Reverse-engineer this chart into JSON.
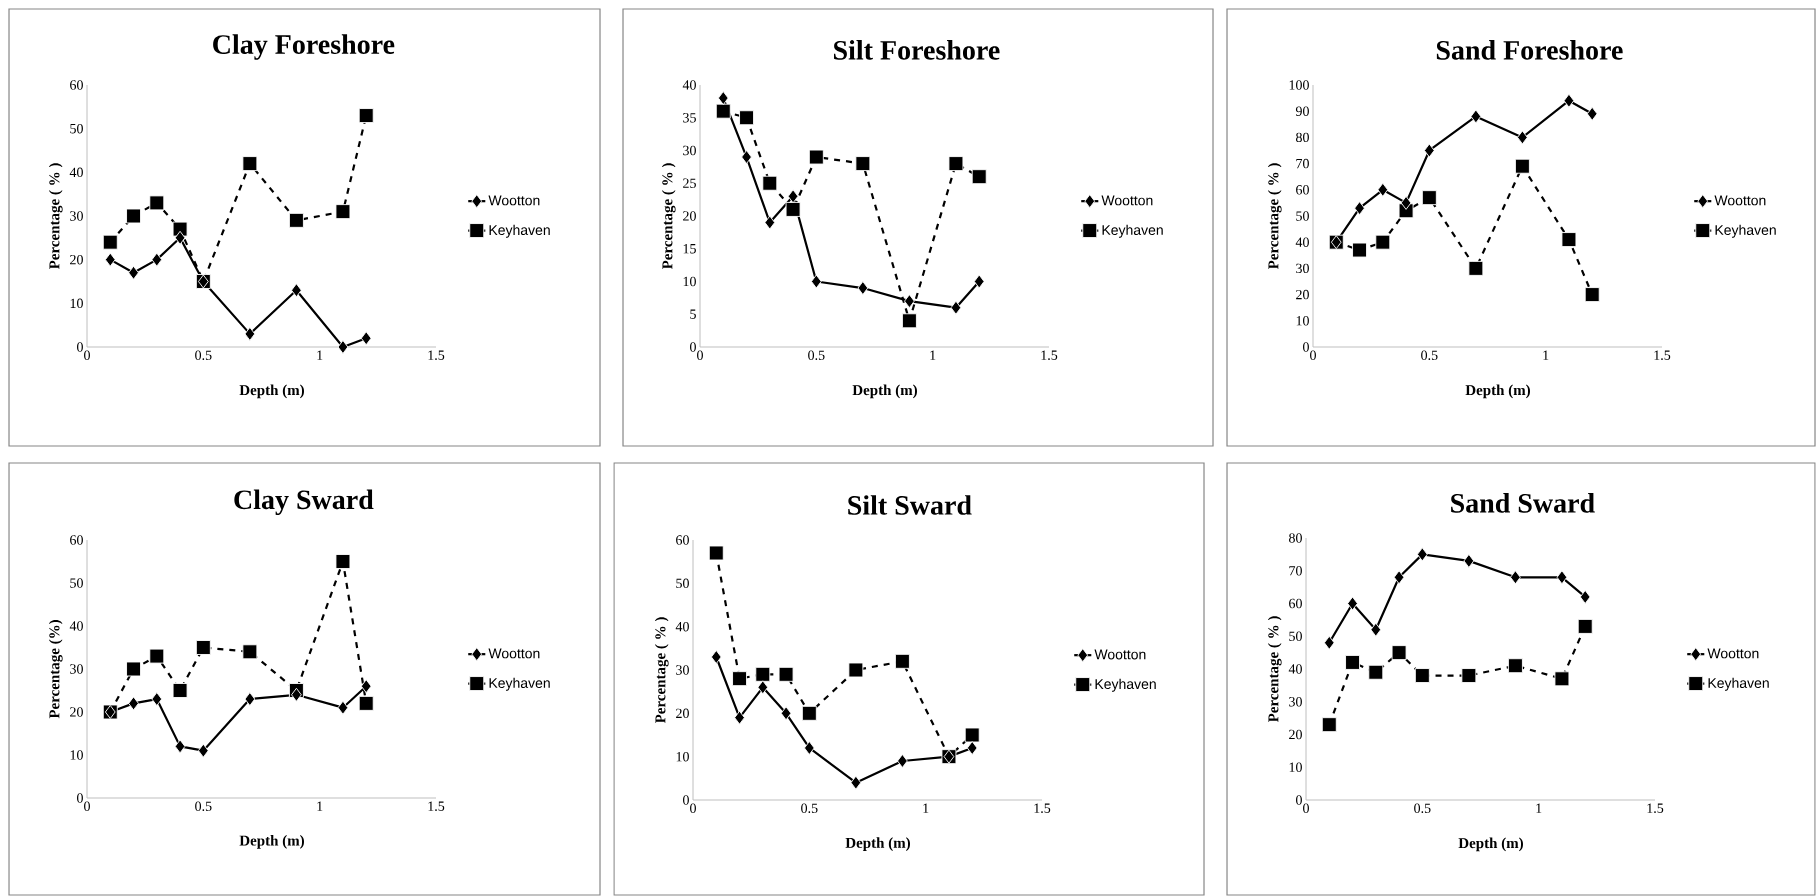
{
  "chart_data": [
    {
      "type": "line",
      "title": "Clay Foreshore",
      "xlabel": "Depth (m)",
      "ylabel": "Percentage ( % )",
      "x": [
        0.1,
        0.2,
        0.3,
        0.4,
        0.5,
        0.7,
        0.9,
        1.1,
        1.2
      ],
      "xlim": [
        0,
        1.5
      ],
      "xticks": [
        0,
        0.5,
        1,
        1.5
      ],
      "ylim": [
        0,
        60
      ],
      "yticks": [
        0,
        10,
        20,
        30,
        40,
        50,
        60
      ],
      "legend": "right",
      "series": [
        {
          "name": "Wootton",
          "color": "#000000",
          "marker": "diamond",
          "line_style": "solid",
          "values": [
            20,
            17,
            20,
            25,
            15,
            3,
            13,
            0,
            2
          ]
        },
        {
          "name": "Keyhaven",
          "color": "#000000",
          "marker": "square",
          "line_style": "dashed",
          "values": [
            24,
            30,
            33,
            27,
            15,
            42,
            29,
            31,
            53
          ]
        }
      ]
    },
    {
      "type": "line",
      "title": "Silt Foreshore",
      "xlabel": "Depth (m)",
      "ylabel": "Percentage ( % )",
      "x": [
        0.1,
        0.2,
        0.3,
        0.4,
        0.5,
        0.7,
        0.9,
        1.1,
        1.2
      ],
      "xlim": [
        0,
        1.5
      ],
      "xticks": [
        0,
        0.5,
        1,
        1.5
      ],
      "ylim": [
        0,
        40
      ],
      "yticks": [
        0,
        5,
        10,
        15,
        20,
        25,
        30,
        35,
        40
      ],
      "legend": "right",
      "series": [
        {
          "name": "Wootton",
          "color": "#000000",
          "marker": "diamond",
          "line_style": "solid",
          "values": [
            38,
            29,
            19,
            23,
            10,
            9,
            7,
            6,
            10
          ]
        },
        {
          "name": "Keyhaven",
          "color": "#000000",
          "marker": "square",
          "line_style": "dashed",
          "values": [
            36,
            35,
            25,
            21,
            29,
            28,
            4,
            28,
            26
          ]
        }
      ]
    },
    {
      "type": "line",
      "title": "Sand Foreshore",
      "xlabel": "Depth (m)",
      "ylabel": "Percentage ( % )",
      "x": [
        0.1,
        0.2,
        0.3,
        0.4,
        0.5,
        0.7,
        0.9,
        1.1,
        1.2
      ],
      "xlim": [
        0,
        1.5
      ],
      "xticks": [
        0,
        0.5,
        1,
        1.5
      ],
      "ylim": [
        0,
        100
      ],
      "yticks": [
        0,
        10,
        20,
        30,
        40,
        50,
        60,
        70,
        80,
        90,
        100
      ],
      "legend": "right",
      "series": [
        {
          "name": "Wootton",
          "color": "#000000",
          "marker": "diamond",
          "line_style": "solid",
          "values": [
            40,
            53,
            60,
            55,
            75,
            88,
            80,
            94,
            89
          ]
        },
        {
          "name": "Keyhaven",
          "color": "#000000",
          "marker": "square",
          "line_style": "dashed",
          "values": [
            40,
            37,
            40,
            52,
            57,
            30,
            69,
            41,
            20
          ]
        }
      ]
    },
    {
      "type": "line",
      "title": "Clay Sward",
      "xlabel": "Depth (m)",
      "ylabel": "Percentage (%)",
      "x": [
        0.1,
        0.2,
        0.3,
        0.4,
        0.5,
        0.7,
        0.9,
        1.1,
        1.2
      ],
      "xlim": [
        0,
        1.5
      ],
      "xticks": [
        0,
        0.5,
        1,
        1.5
      ],
      "ylim": [
        0,
        60
      ],
      "yticks": [
        0,
        10,
        20,
        30,
        40,
        50,
        60
      ],
      "legend": "right",
      "series": [
        {
          "name": "Wootton",
          "color": "#000000",
          "marker": "diamond",
          "line_style": "solid",
          "values": [
            20,
            22,
            23,
            12,
            11,
            23,
            24,
            21,
            26
          ]
        },
        {
          "name": "Keyhaven",
          "color": "#000000",
          "marker": "square",
          "line_style": "dashed",
          "values": [
            20,
            30,
            33,
            25,
            35,
            34,
            25,
            55,
            22
          ]
        }
      ]
    },
    {
      "type": "line",
      "title": "Silt Sward",
      "xlabel": "Depth (m)",
      "ylabel": "Percentage ( % )",
      "x": [
        0.1,
        0.2,
        0.3,
        0.4,
        0.5,
        0.7,
        0.9,
        1.1,
        1.2
      ],
      "xlim": [
        0,
        1.5
      ],
      "xticks": [
        0,
        0.5,
        1,
        1.5
      ],
      "ylim": [
        0,
        60
      ],
      "yticks": [
        0,
        10,
        20,
        30,
        40,
        50,
        60
      ],
      "legend": "right",
      "series": [
        {
          "name": "Wootton",
          "color": "#000000",
          "marker": "diamond",
          "line_style": "solid",
          "values": [
            33,
            19,
            26,
            20,
            12,
            4,
            9,
            10,
            12
          ]
        },
        {
          "name": "Keyhaven",
          "color": "#000000",
          "marker": "square",
          "line_style": "dashed",
          "values": [
            57,
            28,
            29,
            29,
            20,
            30,
            32,
            10,
            15
          ]
        }
      ]
    },
    {
      "type": "line",
      "title": "Sand Sward",
      "xlabel": "Depth (m)",
      "ylabel": "Percentage ( % )",
      "x": [
        0.1,
        0.2,
        0.3,
        0.4,
        0.5,
        0.7,
        0.9,
        1.1,
        1.2
      ],
      "xlim": [
        0,
        1.5
      ],
      "xticks": [
        0,
        0.5,
        1,
        1.5
      ],
      "ylim": [
        0,
        80
      ],
      "yticks": [
        0,
        10,
        20,
        30,
        40,
        50,
        60,
        70,
        80
      ],
      "legend": "right",
      "series": [
        {
          "name": "Wootton",
          "color": "#000000",
          "marker": "diamond",
          "line_style": "solid",
          "values": [
            48,
            60,
            52,
            68,
            75,
            73,
            68,
            68,
            62
          ]
        },
        {
          "name": "Keyhaven",
          "color": "#000000",
          "marker": "square",
          "line_style": "dashed",
          "values": [
            23,
            42,
            39,
            45,
            38,
            38,
            41,
            37,
            53
          ]
        }
      ]
    }
  ]
}
